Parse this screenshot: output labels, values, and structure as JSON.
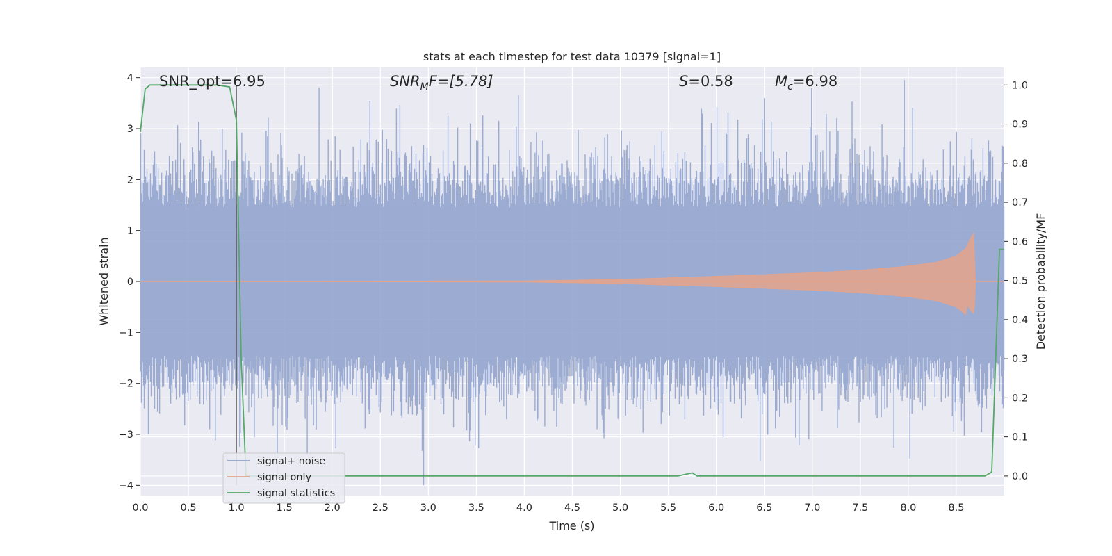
{
  "chart_data": {
    "type": "line",
    "title": "stats at each timestep for test data 10379 [signal=1]",
    "xlabel": "Time (s)",
    "ylabel": "Whitened strain",
    "ylabel_right": "Detection probability/MF",
    "xlim": [
      0,
      9.0
    ],
    "ylim": [
      -4.2,
      4.2
    ],
    "ylim_right": [
      -0.05,
      1.045
    ],
    "x_ticks": [
      "0.0",
      "0.5",
      "1.0",
      "1.5",
      "2.0",
      "2.5",
      "3.0",
      "3.5",
      "4.0",
      "4.5",
      "5.0",
      "5.5",
      "6.0",
      "6.5",
      "7.0",
      "7.5",
      "8.0",
      "8.5"
    ],
    "x_tick_values": [
      0,
      0.5,
      1,
      1.5,
      2,
      2.5,
      3,
      3.5,
      4,
      4.5,
      5,
      5.5,
      6,
      6.5,
      7,
      7.5,
      8,
      8.5
    ],
    "y_ticks": [
      "−4",
      "−3",
      "−2",
      "−1",
      "0",
      "1",
      "2",
      "3",
      "4"
    ],
    "y_tick_values": [
      -4,
      -3,
      -2,
      -1,
      0,
      1,
      2,
      3,
      4
    ],
    "y_right_ticks": [
      "0.0",
      "0.1",
      "0.2",
      "0.3",
      "0.4",
      "0.5",
      "0.6",
      "0.7",
      "0.8",
      "0.9",
      "1.0"
    ],
    "y_right_tick_values": [
      0,
      0.1,
      0.2,
      0.3,
      0.4,
      0.5,
      0.6,
      0.7,
      0.8,
      0.9,
      1.0
    ],
    "grid": true,
    "legend_position": "lower-left",
    "annotations": {
      "snr_opt": "SNR_opt=6.95",
      "snr_mf_main": "SNR",
      "snr_mf_sub": "M",
      "snr_mf_rest": "F=[5.78]",
      "s_main": "S",
      "s_rest": "=0.58",
      "mc_main": "M",
      "mc_sub": "c",
      "mc_rest": "=6.98"
    },
    "vline_x": 1.0,
    "series": [
      {
        "name": "signal+ noise",
        "color": "#8da0cb",
        "description_values": "whitened noise, roughly within -2.6 to 2.6 with spikes to about ±4"
      },
      {
        "name": "signal only",
        "color": "#e5a38a",
        "x": [
          0,
          4.0,
          5.0,
          6.0,
          7.0,
          7.5,
          8.0,
          8.3,
          8.5,
          8.6,
          8.65,
          8.68,
          8.7,
          9.0
        ],
        "amplitude": [
          0.0,
          0.01,
          0.04,
          0.1,
          0.17,
          0.22,
          0.3,
          0.38,
          0.5,
          0.65,
          0.85,
          0.95,
          0.0,
          0.0
        ]
      },
      {
        "name": "signal statistics",
        "color": "#55a868",
        "x": [
          0.0,
          0.05,
          0.1,
          0.2,
          0.5,
          0.8,
          0.93,
          1.0,
          1.05,
          1.1,
          1.5,
          2.0,
          3.0,
          4.0,
          5.0,
          5.6,
          5.75,
          5.8,
          6.0,
          7.0,
          8.0,
          8.8,
          8.87,
          8.95,
          9.0
        ],
        "y": [
          0.88,
          0.99,
          1.0,
          1.0,
          1.0,
          1.0,
          0.995,
          0.91,
          0.3,
          0.0,
          0.0,
          0.0,
          0.0,
          0.0,
          0.0,
          0.0,
          0.008,
          0.0,
          0.0,
          0.0,
          0.0,
          0.0,
          0.01,
          0.58,
          0.58
        ]
      }
    ]
  }
}
